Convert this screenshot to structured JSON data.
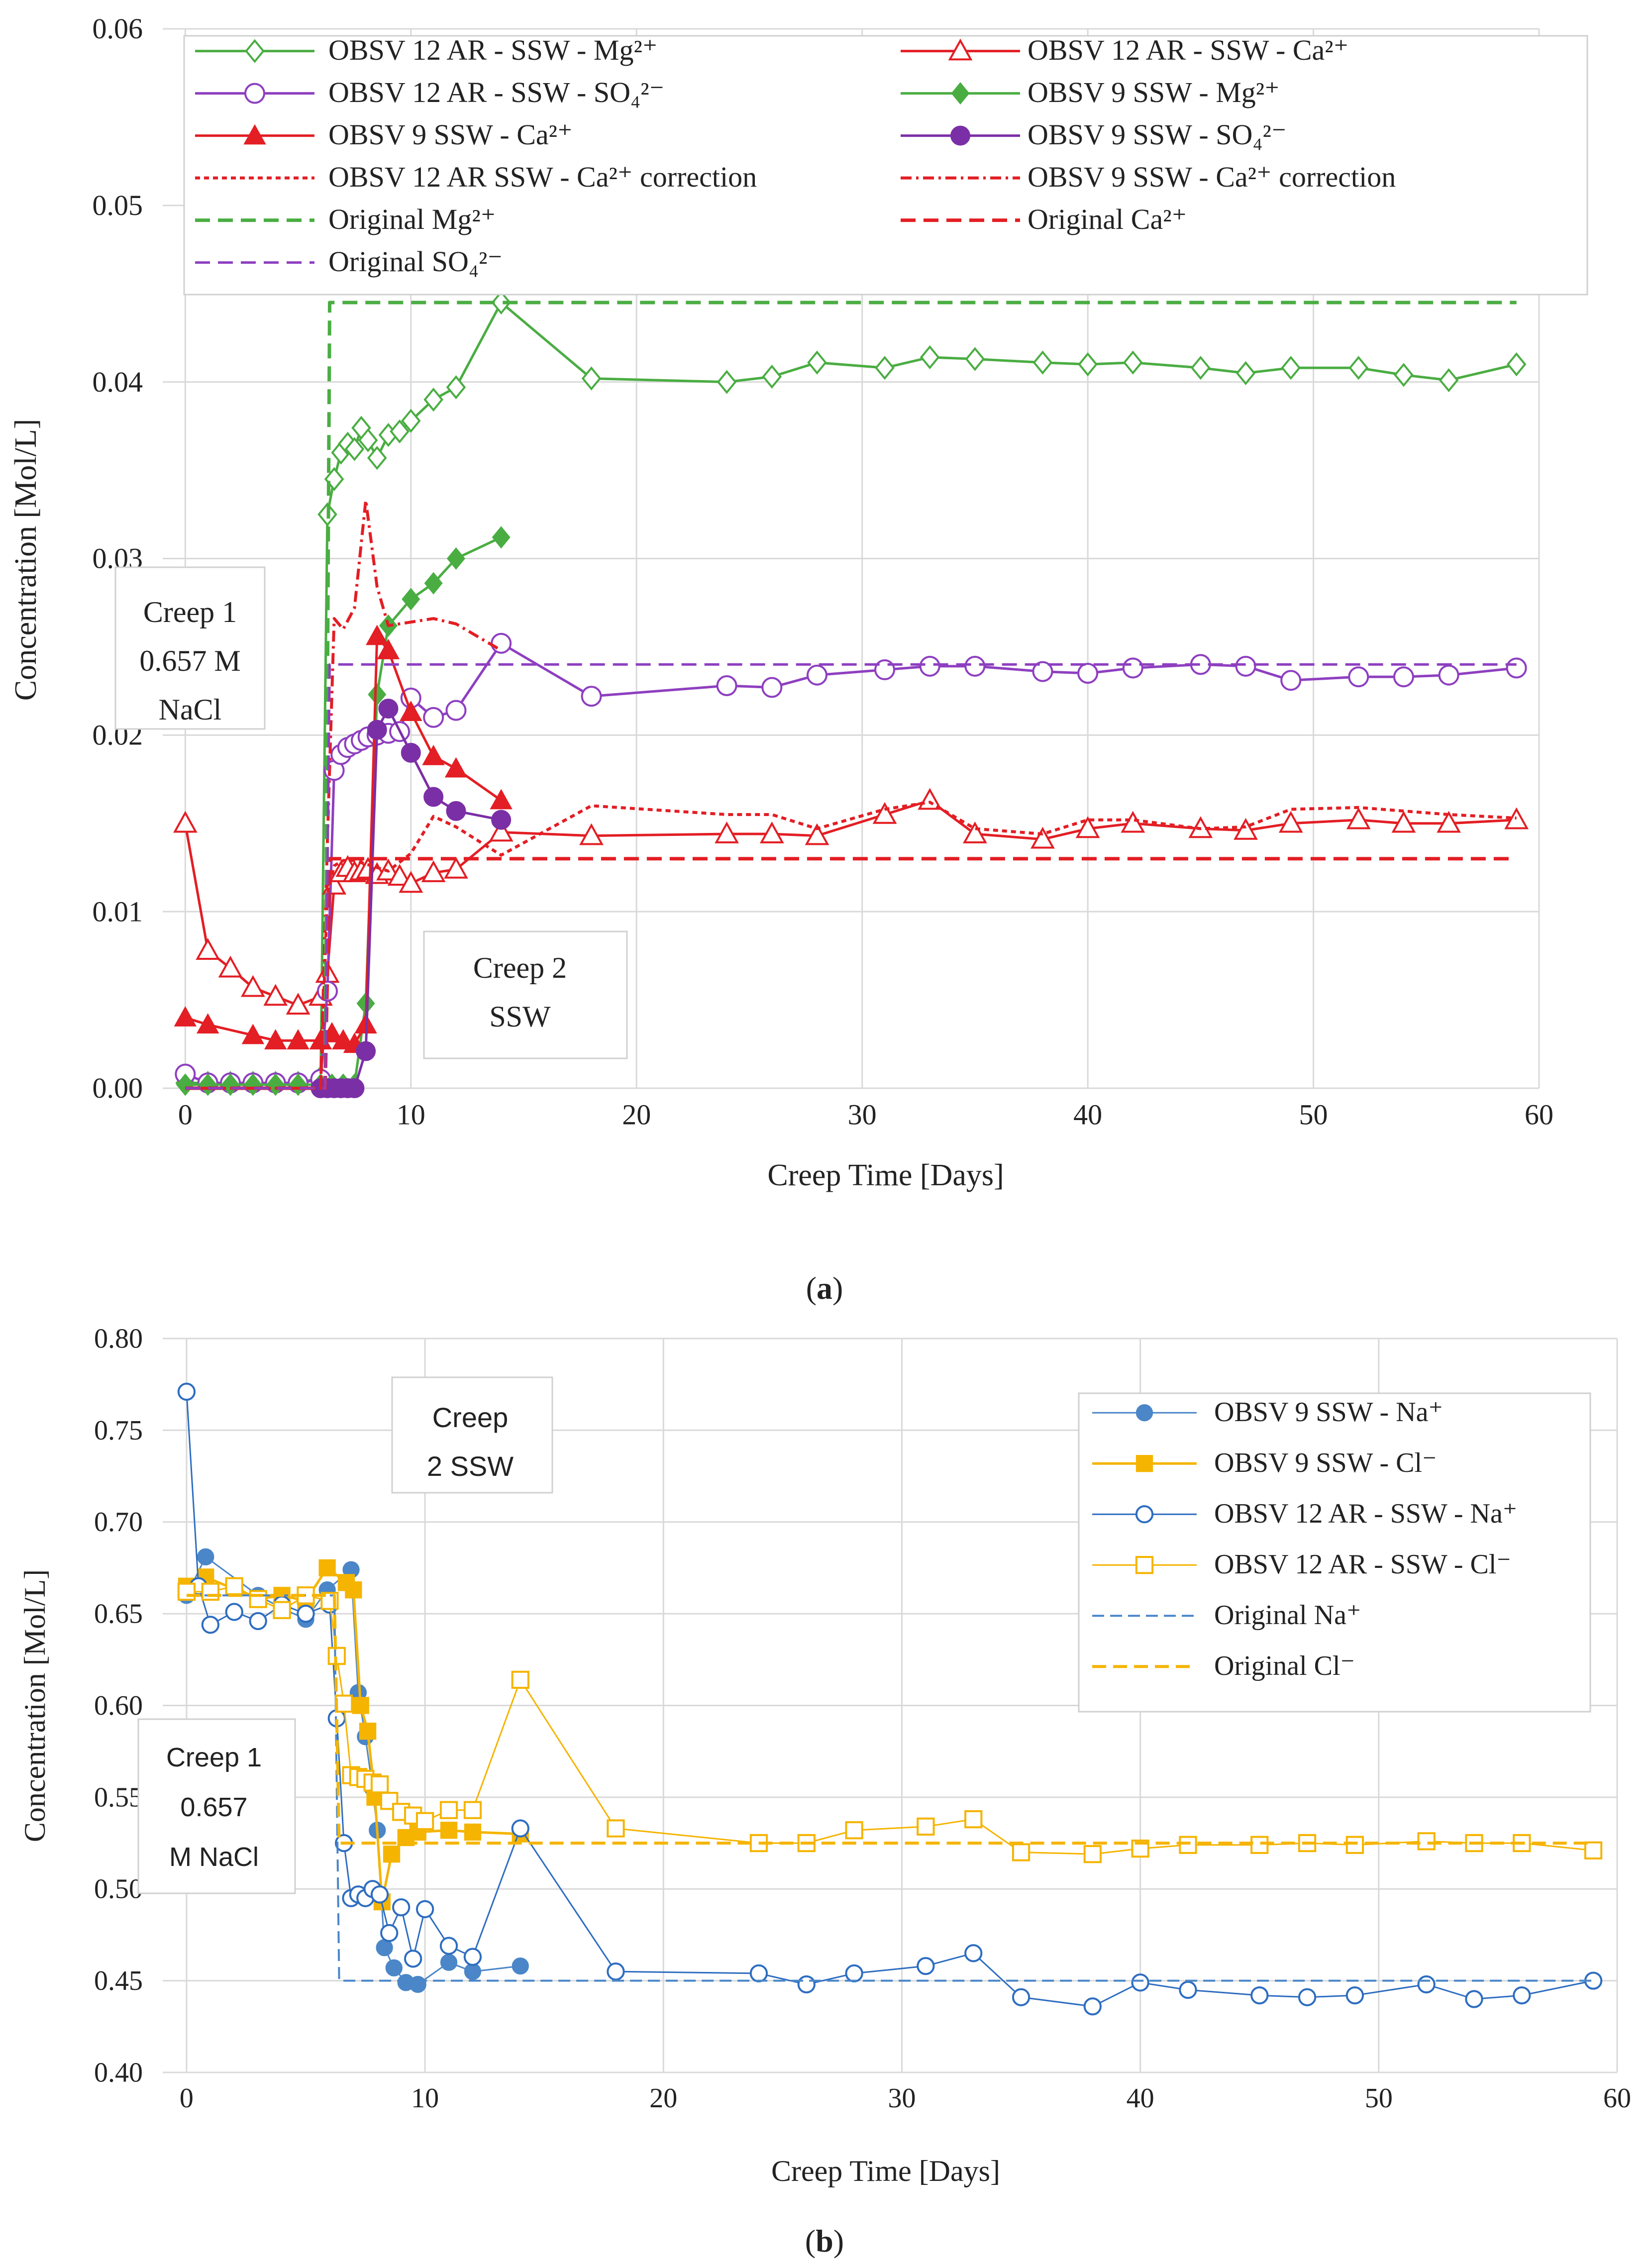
{
  "chart_data": [
    {
      "id": "a",
      "type": "line",
      "caption": "(a)",
      "xlabel": "Creep Time [Days]",
      "ylabel": "Concentration [Mol/L]",
      "xlim": [
        -1,
        60
      ],
      "ylim": [
        0,
        0.06
      ],
      "xticks": [
        0,
        10,
        20,
        30,
        40,
        50,
        60
      ],
      "yticks": [
        0.0,
        0.01,
        0.02,
        0.03,
        0.04,
        0.05,
        0.06
      ],
      "ytick_decimals": 2,
      "grid": true,
      "legend_position": "top",
      "annotations": [
        {
          "name": "creep1-annotation",
          "lines": [
            "Creep 1",
            "0.657 M",
            "NaCl"
          ]
        },
        {
          "name": "creep2-annotation",
          "lines": [
            "Creep 2",
            "SSW"
          ]
        }
      ],
      "series": [
        {
          "name": "OBSV 12 AR - SSW - Mg²⁺",
          "color": "#4aad42",
          "dash": "",
          "marker": "diamond-open",
          "width": 5,
          "x": [
            0,
            1,
            2,
            3,
            4,
            5,
            6,
            6.3,
            6.6,
            6.9,
            7.2,
            7.5,
            7.8,
            8.1,
            8.5,
            9,
            9.5,
            10,
            11,
            12,
            14,
            18,
            24,
            26,
            28,
            31,
            33,
            35,
            38,
            40,
            42,
            45,
            47,
            49,
            52,
            54,
            56,
            59
          ],
          "y": [
            0.0003,
            0.0003,
            0.0003,
            0.0003,
            0.0003,
            0.0003,
            0.0006,
            0.0325,
            0.0345,
            0.036,
            0.0365,
            0.0362,
            0.0374,
            0.0367,
            0.0357,
            0.037,
            0.0372,
            0.0378,
            0.039,
            0.0397,
            0.0445,
            0.0402,
            0.04,
            0.0403,
            0.0411,
            0.0408,
            0.0414,
            0.0413,
            0.0411,
            0.041,
            0.0411,
            0.0408,
            0.0405,
            0.0408,
            0.0408,
            0.0404,
            0.0401,
            0.041
          ]
        },
        {
          "name": "OBSV 12 AR - SSW - Ca²⁺",
          "color": "#e31e24",
          "dash": "",
          "marker": "triangle-open",
          "width": 5,
          "x": [
            0,
            1,
            2,
            3,
            4,
            5,
            6,
            6.3,
            6.6,
            6.9,
            7.2,
            7.5,
            7.8,
            8.1,
            8.5,
            9,
            9.5,
            10,
            11,
            12,
            14,
            18,
            24,
            26,
            28,
            31,
            33,
            35,
            38,
            40,
            42,
            45,
            47,
            49,
            52,
            54,
            56,
            59
          ],
          "y": [
            0.015,
            0.0078,
            0.0068,
            0.0057,
            0.0052,
            0.0047,
            0.0052,
            0.0065,
            0.0115,
            0.0122,
            0.0125,
            0.0122,
            0.0123,
            0.0124,
            0.0121,
            0.0123,
            0.012,
            0.0116,
            0.0122,
            0.0124,
            0.0145,
            0.0143,
            0.0144,
            0.0144,
            0.0143,
            0.0155,
            0.0163,
            0.0144,
            0.0141,
            0.0147,
            0.015,
            0.0147,
            0.0146,
            0.015,
            0.0152,
            0.015,
            0.015,
            0.0152
          ]
        },
        {
          "name": "OBSV 12 AR - SSW - SO₄²⁻",
          "color": "#8e3fc0",
          "dash": "",
          "marker": "circle-open",
          "width": 5,
          "x": [
            0,
            1,
            2,
            3,
            4,
            5,
            6,
            6.3,
            6.6,
            6.9,
            7.2,
            7.5,
            7.8,
            8.1,
            8.5,
            9,
            9.5,
            10,
            11,
            12,
            14,
            18,
            24,
            26,
            28,
            31,
            33,
            35,
            38,
            40,
            42,
            45,
            47,
            49,
            52,
            54,
            56,
            59
          ],
          "y": [
            0.0008,
            0.0003,
            0.0003,
            0.0003,
            0.0003,
            0.0003,
            0.0005,
            0.0055,
            0.018,
            0.0189,
            0.0193,
            0.0195,
            0.0197,
            0.0199,
            0.02,
            0.0201,
            0.0202,
            0.0221,
            0.021,
            0.0214,
            0.0252,
            0.0222,
            0.0228,
            0.0227,
            0.0234,
            0.0237,
            0.0239,
            0.0239,
            0.0236,
            0.0235,
            0.0238,
            0.024,
            0.0239,
            0.0231,
            0.0233,
            0.0233,
            0.0234,
            0.0238
          ]
        },
        {
          "name": "OBSV 9 SSW - Mg²⁺",
          "color": "#4aad42",
          "dash": "",
          "marker": "diamond-filled",
          "width": 5,
          "x": [
            0,
            1,
            2,
            3,
            4,
            5,
            6,
            6.5,
            7,
            7.5,
            8,
            8.5,
            9,
            10,
            11,
            12,
            14
          ],
          "y": [
            0.0002,
            0.0002,
            0.0002,
            0.0002,
            0.0002,
            0.0002,
            0.0002,
            0.0002,
            0.0002,
            0.0002,
            0.0048,
            0.0223,
            0.0262,
            0.0277,
            0.0286,
            0.03,
            0.0312
          ]
        },
        {
          "name": "OBSV 9 SSW - Ca²⁺",
          "color": "#e31e24",
          "dash": "",
          "marker": "triangle-filled",
          "width": 5,
          "x": [
            0,
            1,
            3,
            4,
            5,
            6,
            6.5,
            7,
            7.5,
            8,
            8.5,
            9,
            10,
            11,
            12,
            14
          ],
          "y": [
            0.004,
            0.0036,
            0.003,
            0.0027,
            0.0027,
            0.0027,
            0.0031,
            0.0027,
            0.0025,
            0.0036,
            0.0256,
            0.0248,
            0.0213,
            0.0188,
            0.0181,
            0.0163
          ]
        },
        {
          "name": "OBSV 9 SSW - SO₄²⁻",
          "color": "#7b2fa6",
          "dash": "",
          "marker": "circle-filled",
          "width": 5,
          "x": [
            6,
            6.3,
            6.6,
            6.9,
            7.2,
            7.5,
            8,
            8.5,
            9,
            10,
            11,
            12,
            14
          ],
          "y": [
            0,
            0,
            0,
            0,
            0,
            0,
            0.0021,
            0.0203,
            0.0215,
            0.019,
            0.0165,
            0.0157,
            0.0152
          ]
        },
        {
          "name": "OBSV 12 AR SSW - Ca²⁺ correction",
          "color": "#e31e24",
          "dash": "10,8",
          "marker": "none",
          "width": 6,
          "x": [
            0,
            6,
            6.3,
            6.6,
            7,
            7.5,
            8,
            9,
            10,
            11,
            12,
            14,
            18,
            24,
            26,
            28,
            31,
            33,
            35,
            38,
            40,
            42,
            45,
            47,
            49,
            52,
            54,
            56,
            59
          ],
          "y": [
            0,
            0,
            0.011,
            0.0126,
            0.0129,
            0.0129,
            0.0127,
            0.0123,
            0.0133,
            0.0154,
            0.0148,
            0.0132,
            0.016,
            0.0155,
            0.0155,
            0.0147,
            0.0158,
            0.0162,
            0.0147,
            0.0144,
            0.0152,
            0.0152,
            0.0147,
            0.0148,
            0.0158,
            0.0159,
            0.0157,
            0.0155,
            0.0153
          ]
        },
        {
          "name": "OBSV 9 SSW - Ca²⁺ correction",
          "color": "#e31e24",
          "dash": "22,9,5,9",
          "marker": "none",
          "width": 6,
          "x": [
            0,
            6,
            6.3,
            6.6,
            7,
            7.5,
            8,
            8.5,
            9,
            10,
            11,
            12,
            14
          ],
          "y": [
            0,
            0,
            0.014,
            0.0266,
            0.026,
            0.0272,
            0.0333,
            0.0284,
            0.0262,
            0.0264,
            0.0266,
            0.0263,
            0.0248
          ]
        },
        {
          "name": "Original Mg²⁺",
          "color": "#4aad42",
          "dash": "30,16",
          "marker": "none",
          "width": 7,
          "x": [
            0,
            6.2,
            6.4,
            59
          ],
          "y": [
            0,
            0,
            0.0445,
            0.0445
          ]
        },
        {
          "name": "Original Ca²⁺",
          "color": "#e31e24",
          "dash": "30,16",
          "marker": "none",
          "width": 7,
          "x": [
            0,
            6.2,
            6.4,
            59
          ],
          "y": [
            0,
            0,
            0.013,
            0.013
          ]
        },
        {
          "name": "Original SO₄²⁻",
          "color": "#8e3fc0",
          "dash": "30,16",
          "marker": "none",
          "width": 5,
          "x": [
            0,
            6.2,
            6.4,
            59
          ],
          "y": [
            0,
            0,
            0.024,
            0.024
          ]
        }
      ]
    },
    {
      "id": "b",
      "type": "line",
      "caption": "(b)",
      "xlabel": "Creep Time [Days]",
      "ylabel": "Concentration [Mol/L]",
      "xlim": [
        -1,
        60
      ],
      "ylim": [
        0.4,
        0.8
      ],
      "xticks": [
        0,
        10,
        20,
        30,
        40,
        50,
        60
      ],
      "yticks": [
        0.4,
        0.45,
        0.5,
        0.55,
        0.6,
        0.65,
        0.7,
        0.75,
        0.8
      ],
      "ytick_decimals": 2,
      "grid": true,
      "legend_position": "right",
      "annotations": [
        {
          "name": "creep2-annotation",
          "lines": [
            "Creep",
            "2 SSW"
          ]
        },
        {
          "name": "creep1-annotation",
          "lines": [
            "Creep 1",
            "0.657",
            "M NaCl"
          ]
        }
      ],
      "series": [
        {
          "name": "OBSV 9 SSW - Na⁺",
          "color": "#4a86c8",
          "dash": "",
          "marker": "circle-filled",
          "width": 3,
          "x": [
            0,
            0.8,
            3,
            4,
            5,
            5.9,
            6.9,
            7.2,
            7.5,
            7.8,
            8,
            8.3,
            8.7,
            9.2,
            9.7,
            11,
            12,
            14
          ],
          "y": [
            0.66,
            0.681,
            0.66,
            0.653,
            0.647,
            0.663,
            0.674,
            0.607,
            0.583,
            0.555,
            0.532,
            0.468,
            0.457,
            0.449,
            0.448,
            0.46,
            0.455,
            0.458
          ]
        },
        {
          "name": "OBSV 9 SSW - Cl⁻",
          "color": "#f5b400",
          "dash": "",
          "marker": "square-filled",
          "width": 5,
          "x": [
            0,
            0.8,
            3,
            4,
            5,
            5.9,
            6.7,
            7,
            7.3,
            7.6,
            7.9,
            8.2,
            8.6,
            9.2,
            9.7,
            11,
            12,
            14
          ],
          "y": [
            0.665,
            0.67,
            0.658,
            0.66,
            0.657,
            0.675,
            0.667,
            0.663,
            0.6,
            0.586,
            0.55,
            0.493,
            0.519,
            0.528,
            0.531,
            0.532,
            0.531,
            0.53
          ]
        },
        {
          "name": "OBSV 12 AR - SSW - Na⁺",
          "color": "#2e6dc0",
          "dash": "",
          "marker": "circle-open",
          "width": 3,
          "x": [
            0,
            0.5,
            1,
            2,
            3,
            4,
            5,
            6,
            6.3,
            6.6,
            6.9,
            7.2,
            7.5,
            7.8,
            8.1,
            8.5,
            9,
            9.5,
            10,
            11,
            12,
            14,
            18,
            24,
            26,
            28,
            31,
            33,
            35,
            38,
            40,
            42,
            45,
            47,
            49,
            52,
            54,
            56,
            59
          ],
          "y": [
            0.771,
            0.665,
            0.644,
            0.651,
            0.646,
            0.655,
            0.65,
            0.655,
            0.593,
            0.525,
            0.495,
            0.497,
            0.495,
            0.5,
            0.497,
            0.476,
            0.49,
            0.462,
            0.489,
            0.469,
            0.463,
            0.533,
            0.455,
            0.454,
            0.448,
            0.454,
            0.458,
            0.465,
            0.441,
            0.436,
            0.449,
            0.445,
            0.442,
            0.441,
            0.442,
            0.448,
            0.44,
            0.442,
            0.45
          ]
        },
        {
          "name": "OBSV 12 AR - SSW - Cl⁻",
          "color": "#f5b400",
          "dash": "",
          "marker": "square-open",
          "width": 3,
          "x": [
            0,
            1,
            2,
            3,
            4,
            5,
            6,
            6.3,
            6.6,
            6.9,
            7.2,
            7.5,
            7.8,
            8.1,
            8.5,
            9,
            9.5,
            10,
            11,
            12,
            14,
            18,
            24,
            26,
            28,
            31,
            33,
            35,
            38,
            40,
            42,
            45,
            47,
            49,
            52,
            54,
            56,
            59
          ],
          "y": [
            0.662,
            0.662,
            0.665,
            0.658,
            0.652,
            0.66,
            0.657,
            0.627,
            0.601,
            0.562,
            0.561,
            0.56,
            0.558,
            0.557,
            0.548,
            0.542,
            0.54,
            0.537,
            0.543,
            0.543,
            0.614,
            0.533,
            0.525,
            0.525,
            0.532,
            0.534,
            0.538,
            0.52,
            0.519,
            0.522,
            0.524,
            0.524,
            0.525,
            0.524,
            0.526,
            0.525,
            0.525,
            0.521
          ]
        },
        {
          "name": "Original Na⁺",
          "color": "#4a86c8",
          "dash": "24,12",
          "marker": "none",
          "width": 4,
          "x": [
            0,
            6.2,
            6.4,
            59
          ],
          "y": [
            0.66,
            0.66,
            0.45,
            0.45
          ]
        },
        {
          "name": "Original Cl⁻",
          "color": "#f5b400",
          "dash": "28,14",
          "marker": "none",
          "width": 6,
          "x": [
            0,
            6.2,
            6.4,
            59
          ],
          "y": [
            0.66,
            0.66,
            0.525,
            0.525
          ]
        }
      ]
    }
  ]
}
